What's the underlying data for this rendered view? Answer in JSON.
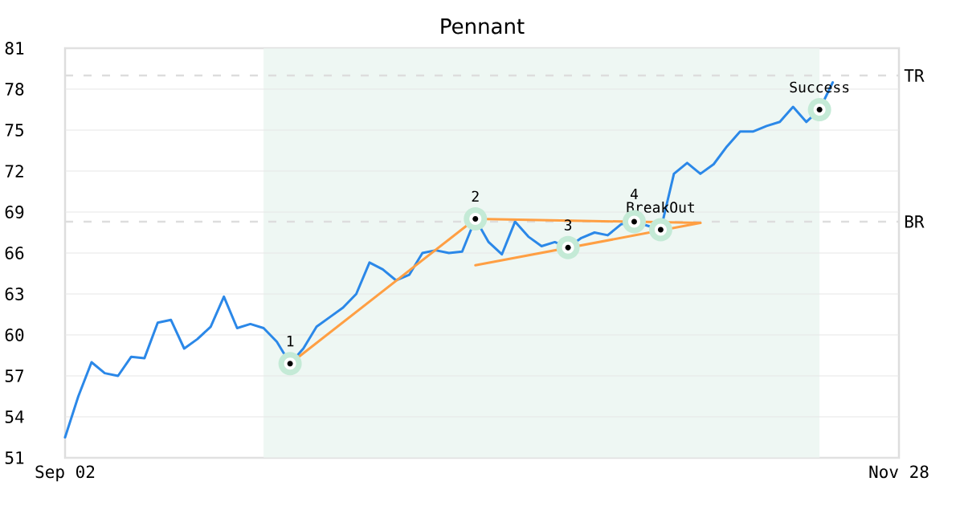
{
  "chart_data": {
    "type": "line",
    "title": "Pennant",
    "categories": [
      "Sep 02",
      null,
      null,
      null,
      null,
      null,
      null,
      null,
      null,
      null,
      null,
      null,
      null,
      null,
      null,
      null,
      null,
      null,
      null,
      null,
      null,
      null,
      null,
      null,
      null,
      null,
      null,
      null,
      null,
      null,
      null,
      null,
      null,
      null,
      null,
      null,
      null,
      null,
      null,
      null,
      null,
      null,
      null,
      null,
      null,
      null,
      null,
      null,
      null,
      null,
      null,
      null,
      null,
      null,
      null,
      null,
      null,
      null,
      null,
      null,
      null,
      null,
      null,
      "Nov 28"
    ],
    "ylim": [
      51,
      81
    ],
    "yticks": [
      51,
      54,
      57,
      60,
      63,
      66,
      69,
      72,
      75,
      78,
      81
    ],
    "grid": "y",
    "series": [
      {
        "color": "#2b88e8",
        "values": [
          52.5,
          55.5,
          58.0,
          57.2,
          57.0,
          58.4,
          58.3,
          60.9,
          61.1,
          59.0,
          59.7,
          60.6,
          62.8,
          60.5,
          60.8,
          60.5,
          59.5,
          57.9,
          59.0,
          60.6,
          61.3,
          62.0,
          63.0,
          65.3,
          64.8,
          64.0,
          64.4,
          66.0,
          66.2,
          66.0,
          66.1,
          68.5,
          66.8,
          65.9,
          68.3,
          67.2,
          66.5,
          66.8,
          66.4,
          67.1,
          67.5,
          67.3,
          68.1,
          68.3,
          68.0,
          67.7,
          71.8,
          72.6,
          71.8,
          72.5,
          73.8,
          74.9,
          74.9,
          75.3,
          75.6,
          76.7,
          75.6,
          76.5,
          78.5,
          null,
          null,
          null,
          null,
          null
        ]
      },
      {
        "type": "line",
        "color": "#ff9f43",
        "values": [
          null,
          null,
          null,
          null,
          null,
          null,
          null,
          null,
          null,
          null,
          null,
          null,
          null,
          null,
          null,
          null,
          null,
          57.9,
          null,
          null,
          null,
          null,
          null,
          null,
          null,
          null,
          null,
          null,
          null,
          null,
          null,
          68.5,
          null,
          null,
          null,
          null,
          null,
          null,
          null,
          null,
          null,
          null,
          null,
          null,
          null,
          null,
          null,
          null,
          68.2,
          null,
          null,
          null,
          null,
          null,
          null,
          null,
          null,
          null,
          null,
          null,
          null,
          null,
          null,
          null
        ]
      },
      {
        "type": "line",
        "color": "#ff9f43",
        "values": [
          null,
          null,
          null,
          null,
          null,
          null,
          null,
          null,
          null,
          null,
          null,
          null,
          null,
          null,
          null,
          null,
          null,
          null,
          null,
          null,
          null,
          null,
          null,
          null,
          null,
          null,
          null,
          null,
          null,
          null,
          null,
          65.1,
          null,
          null,
          null,
          null,
          null,
          null,
          null,
          null,
          null,
          null,
          null,
          null,
          null,
          null,
          null,
          null,
          68.2,
          null,
          null,
          null,
          null,
          null,
          null,
          null,
          null,
          null,
          null,
          null,
          null,
          null,
          null,
          null
        ]
      },
      {
        "type": "scatter",
        "color": "#c4ead6",
        "marker": "circle",
        "values": [
          null,
          null,
          null,
          null,
          null,
          null,
          null,
          null,
          null,
          null,
          null,
          null,
          null,
          null,
          null,
          null,
          null,
          57.9,
          null,
          null,
          null,
          null,
          null,
          null,
          null,
          null,
          null,
          null,
          null,
          null,
          null,
          68.5,
          null,
          null,
          null,
          null,
          null,
          null,
          66.4,
          null,
          null,
          null,
          null,
          68.3,
          null,
          67.7,
          null,
          null,
          null,
          null,
          null,
          null,
          null,
          null,
          null,
          null,
          null,
          76.5,
          null,
          null,
          null,
          null,
          null,
          null
        ]
      }
    ],
    "ref_lines": [
      {
        "axis": "y",
        "value": 79.0,
        "label": "TR",
        "color": "#dddddd",
        "line_style": "dashed"
      },
      {
        "axis": "y",
        "value": 68.3,
        "label": "BR",
        "color": "#dddddd",
        "line_style": "dashed"
      }
    ],
    "annotations": [
      "1",
      "2",
      "3",
      "4",
      "BreakOut",
      "Success"
    ]
  }
}
